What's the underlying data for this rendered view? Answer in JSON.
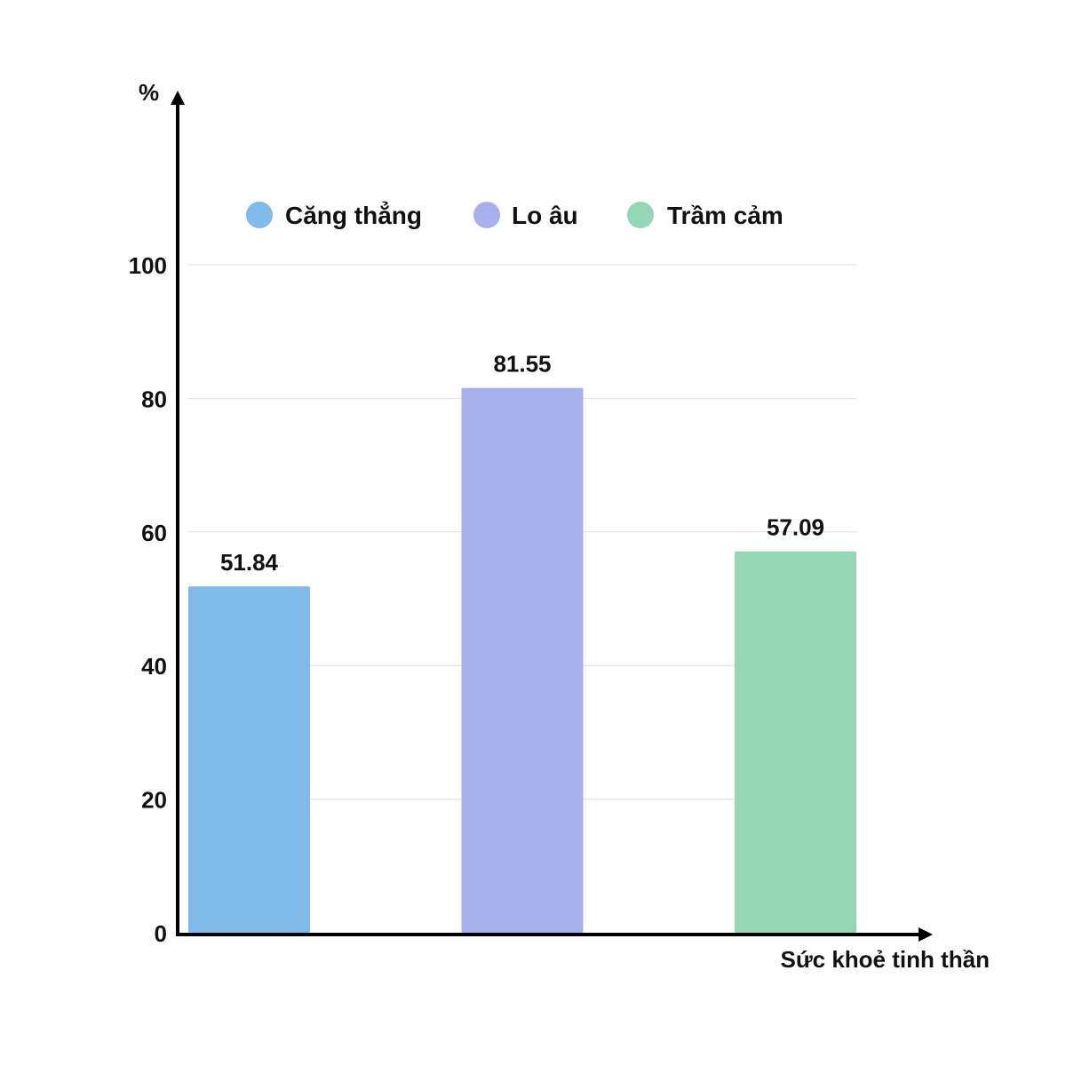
{
  "chart_data": {
    "type": "bar",
    "categories": [
      "Căng thẳng",
      "Lo âu",
      "Trầm cảm"
    ],
    "values": [
      51.84,
      81.55,
      57.09
    ],
    "value_labels": [
      "51.84",
      "81.55",
      "57.09"
    ],
    "colors": [
      "#7fbae8",
      "#a6b1ec",
      "#95d6b6"
    ],
    "ylabel": "%",
    "xlabel": "Sức khoẻ tinh thần",
    "ylim": [
      0,
      100
    ],
    "yticks": [
      0,
      20,
      40,
      60,
      80,
      100
    ],
    "grid": true,
    "legend_position": "top",
    "legend": [
      {
        "name": "Căng thẳng",
        "color": "#7fbae8"
      },
      {
        "name": "Lo âu",
        "color": "#a6b1ec"
      },
      {
        "name": "Trầm cảm",
        "color": "#95d6b6"
      }
    ]
  }
}
